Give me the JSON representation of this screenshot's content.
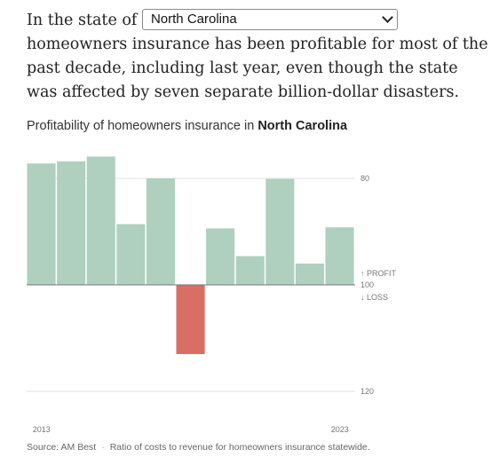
{
  "lede": {
    "before": "In the state of",
    "after": "homeowners insurance has been profitable for most of the past decade, including last year, even though the state was affected by seven separate billion-dollar disasters."
  },
  "state_select": {
    "value": "North Carolina",
    "icon": "chevron-down-icon"
  },
  "chart_title": {
    "prefix": "Profitability of homeowners insurance in",
    "state": "North Carolina"
  },
  "footer": {
    "source": "Source: AM Best",
    "note": "Ratio of costs to revenue for homeowners insurance statewide."
  },
  "chart_data": {
    "type": "bar",
    "x": [
      2013,
      2014,
      2015,
      2016,
      2017,
      2018,
      2019,
      2020,
      2021,
      2022,
      2023
    ],
    "values": [
      77.2,
      76.8,
      75.9,
      88.6,
      80.0,
      113.0,
      89.4,
      94.6,
      80.1,
      96.0,
      89.2
    ],
    "baseline": 100,
    "y_ticks": [
      80,
      100,
      120
    ],
    "y_tick_labels": [
      "80",
      "100",
      "120"
    ],
    "ylim": [
      74.5,
      126.5
    ],
    "y_inverted": true,
    "x_tick_labels": [
      {
        "x": 2013,
        "label": "2013"
      },
      {
        "x": 2023,
        "label": "2023"
      }
    ],
    "annotations": {
      "profit": "↑ PROFIT",
      "loss": "↓ LOSS"
    },
    "colors": {
      "profit": "#afd0bf",
      "loss": "#d96e65",
      "grid": "#e0e0e0",
      "baseline": "#777777"
    },
    "legend": "none",
    "grid": true
  }
}
